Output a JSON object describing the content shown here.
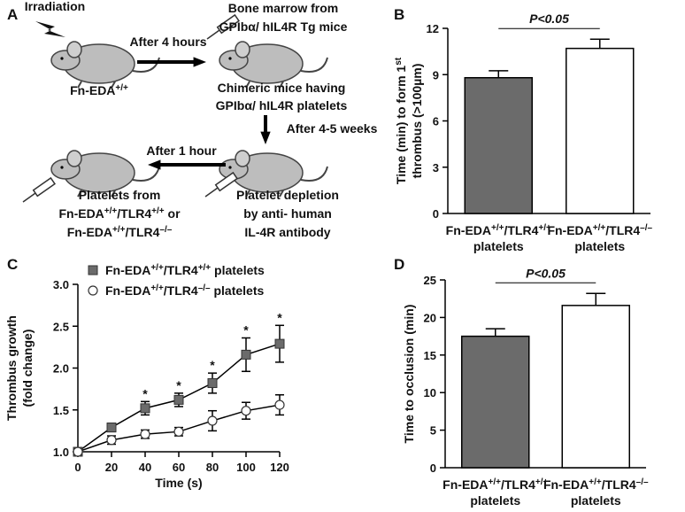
{
  "diagram": {
    "panel_label": "A",
    "texts": [
      [
        "Irradiation"
      ],
      [
        "After 4 hours"
      ],
      [
        "Fn-EDA",
        "+/+"
      ],
      [
        "Bone marrow from"
      ],
      [
        "GPIbα/ hIL4R Tg mice"
      ],
      [
        "Chimeric mice having"
      ],
      [
        "GPIbα/ hIL4R platelets"
      ],
      [
        "After 4-5 weeks"
      ],
      [
        "After 1 hour"
      ],
      [
        "Platelets from"
      ],
      [
        "Fn-EDA",
        "+/+",
        "/TLR4",
        "+/+",
        " or"
      ],
      [
        "Fn-EDA",
        "+/+",
        "/TLR4",
        "–/–"
      ],
      [
        "Platelet depletion"
      ],
      [
        "by anti- human"
      ],
      [
        "IL-4R antibody"
      ]
    ]
  },
  "chart_data": [
    {
      "type": "bar",
      "panel_label": "B",
      "y_label": [
        [
          "Time (min) to form 1",
          "st"
        ],
        [
          "thrombus (>100µm)"
        ]
      ],
      "categories": [
        [
          [
            "Fn-EDA",
            "+/+",
            "/TLR4",
            "+/+"
          ],
          [
            "platelets"
          ]
        ],
        [
          [
            "Fn-EDA",
            "+/+",
            "/TLR4",
            "–/–"
          ],
          [
            "platelets"
          ]
        ]
      ],
      "values": [
        8.8,
        10.7
      ],
      "errors": [
        0.45,
        0.6
      ],
      "colors": [
        "#6b6b6b",
        "#ffffff"
      ],
      "ylim": [
        0,
        12
      ],
      "yticks": [
        0,
        3,
        6,
        9,
        12
      ],
      "annotation": "P<0.05"
    },
    {
      "type": "line",
      "panel_label": "C",
      "y_label": [
        [
          "Thrombus growth"
        ],
        [
          "(fold change)"
        ]
      ],
      "x_label": "Time (s)",
      "x": [
        0,
        20,
        40,
        60,
        80,
        100,
        120
      ],
      "xlim": [
        0,
        120
      ],
      "xticks": [
        0,
        20,
        40,
        60,
        80,
        100,
        120
      ],
      "ylim": [
        1,
        3
      ],
      "yticks": [
        {
          "value": 1,
          "label": "1.0"
        },
        {
          "value": 1.5,
          "label": "1.5"
        },
        {
          "value": 2,
          "label": "2.0"
        },
        {
          "value": 2.5,
          "label": "2.5"
        },
        {
          "value": 3,
          "label": "3.0"
        }
      ],
      "series": [
        {
          "name": [
            "Fn-EDA",
            "+/+",
            "/TLR4",
            "+/+",
            " platelets"
          ],
          "color": "#6b6b6b",
          "marker": "square",
          "values": [
            1.0,
            1.29,
            1.52,
            1.62,
            1.82,
            2.16,
            2.29
          ],
          "errors": [
            0,
            0.05,
            0.08,
            0.08,
            0.12,
            0.2,
            0.22
          ]
        },
        {
          "name": [
            "Fn-EDA",
            "+/+",
            "/TLR4",
            "–/–",
            " platelets"
          ],
          "color": "#ffffff",
          "marker": "circle",
          "values": [
            1.0,
            1.14,
            1.21,
            1.24,
            1.37,
            1.49,
            1.56
          ],
          "errors": [
            0,
            0.05,
            0.05,
            0.05,
            0.12,
            0.1,
            0.12
          ]
        }
      ],
      "annotations": [
        {
          "text": "*",
          "x": 40
        },
        {
          "text": "*",
          "x": 60
        },
        {
          "text": "*",
          "x": 80
        },
        {
          "text": "*",
          "x": 100
        },
        {
          "text": "*",
          "x": 120
        }
      ]
    },
    {
      "type": "bar",
      "panel_label": "D",
      "y_label": [
        [
          "Time to occlusion (min)"
        ]
      ],
      "categories": [
        [
          [
            "Fn-EDA",
            "+/+",
            "/TLR4",
            "+/+"
          ],
          [
            "platelets"
          ]
        ],
        [
          [
            "Fn-EDA",
            "+/+",
            "/TLR4",
            "–/–"
          ],
          [
            "platelets"
          ]
        ]
      ],
      "values": [
        17.5,
        21.6
      ],
      "errors": [
        1.0,
        1.6
      ],
      "colors": [
        "#6b6b6b",
        "#ffffff"
      ],
      "ylim": [
        0,
        25
      ],
      "yticks": [
        0,
        5,
        10,
        15,
        20,
        25
      ],
      "annotation": "P<0.05"
    }
  ]
}
